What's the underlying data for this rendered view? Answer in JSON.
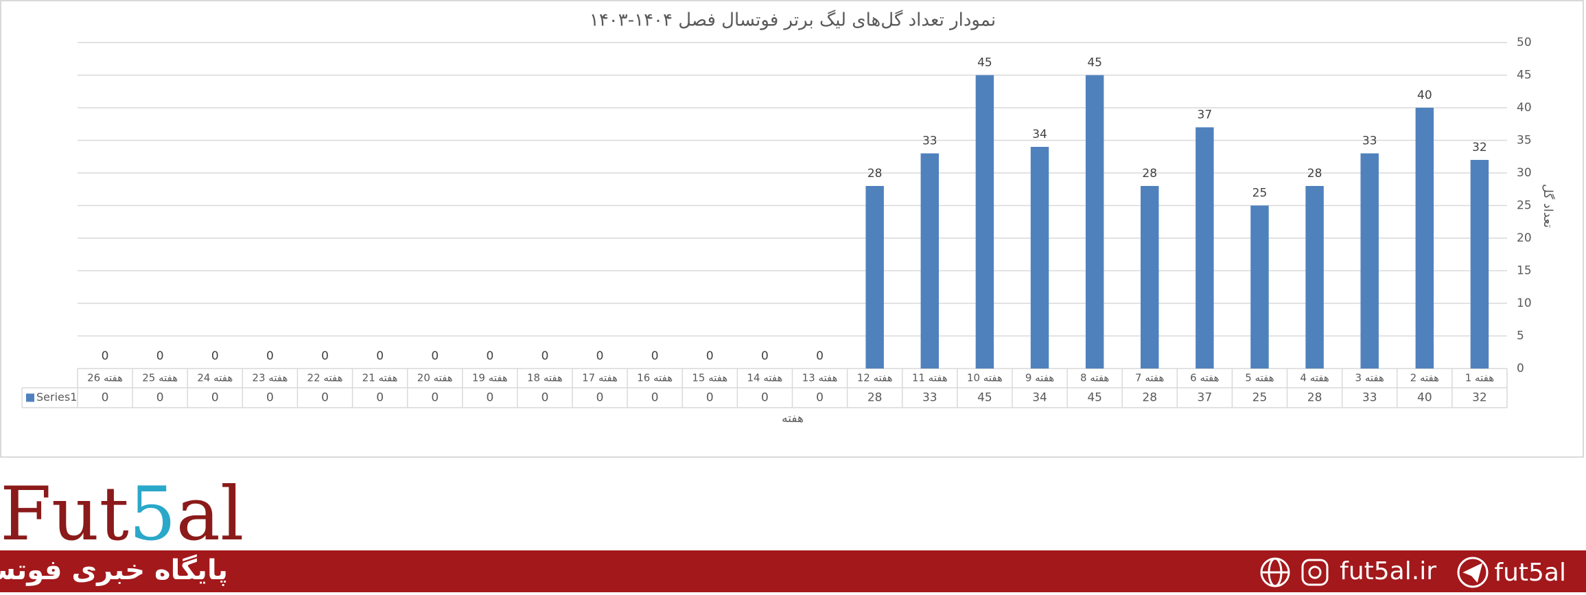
{
  "chart_data": {
    "type": "bar",
    "title": "نمودار تعداد گل‌های لیگ برتر فوتسال فصل ۱۴۰۴-۱۴۰۳",
    "x_label": "هفته",
    "y_label": "تعداد گل",
    "categories": [
      "هفته 1",
      "هفته 2",
      "هفته 3",
      "هفته 4",
      "هفته 5",
      "هفته 6",
      "هفته 7",
      "هفته 8",
      "هفته 9",
      "هفته 10",
      "هفته 11",
      "هفته 12",
      "هفته 13",
      "هفته 14",
      "هفته 15",
      "هفته 16",
      "هفته 17",
      "هفته 18",
      "هفته 19",
      "هفته 20",
      "هفته 21",
      "هفته 22",
      "هفته 23",
      "هفته 24",
      "هفته 25",
      "هفته 26"
    ],
    "series": [
      {
        "name": "Series1",
        "color": "#4f81bd",
        "values": [
          32,
          40,
          33,
          28,
          25,
          37,
          28,
          45,
          34,
          45,
          33,
          28,
          0,
          0,
          0,
          0,
          0,
          0,
          0,
          0,
          0,
          0,
          0,
          0,
          0,
          0
        ]
      }
    ],
    "ylim": [
      0,
      50
    ],
    "yticks": [
      0,
      5,
      10,
      15,
      20,
      25,
      30,
      35,
      40,
      45,
      50
    ],
    "grid": true
  },
  "footer": {
    "logo_parts": [
      "Fut",
      "5",
      "al"
    ],
    "tagline": "پایگاه خبری فوتسال",
    "website": "fut5al.ir",
    "handle": "fut5al"
  }
}
